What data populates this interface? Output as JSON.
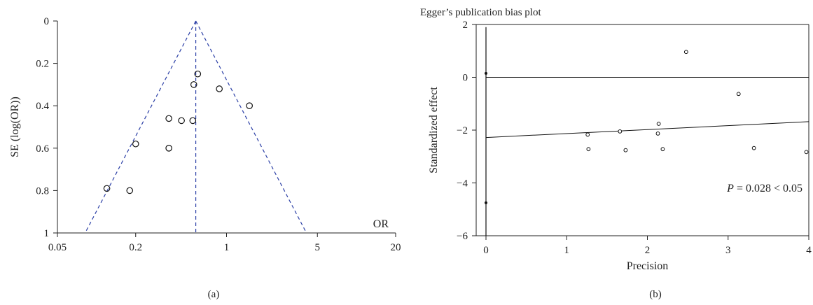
{
  "chart_data": [
    {
      "type": "scatter",
      "subtype": "funnel",
      "caption": "(a)",
      "xlabel": "OR",
      "ylabel": "SE (log(OR))",
      "x_scale": "log",
      "xlim": [
        0.05,
        20
      ],
      "ylim": [
        0,
        1
      ],
      "y_reversed": true,
      "xticks": [
        0.05,
        0.2,
        1,
        5,
        20
      ],
      "xtick_labels": [
        "0.05",
        "0.2",
        "1",
        "5",
        "20"
      ],
      "yticks": [
        0,
        0.2,
        0.4,
        0.6,
        0.8,
        1
      ],
      "ytick_labels": [
        "0",
        "0.2",
        "0.4",
        "0.6",
        "0.8",
        "1"
      ],
      "pooled_or": 0.58,
      "funnel_color": "#2b3fa6",
      "points": [
        {
          "x": 0.6,
          "y": 0.25
        },
        {
          "x": 0.56,
          "y": 0.3
        },
        {
          "x": 0.88,
          "y": 0.32
        },
        {
          "x": 1.5,
          "y": 0.4
        },
        {
          "x": 0.36,
          "y": 0.46
        },
        {
          "x": 0.45,
          "y": 0.47
        },
        {
          "x": 0.55,
          "y": 0.47
        },
        {
          "x": 0.2,
          "y": 0.58
        },
        {
          "x": 0.36,
          "y": 0.6
        },
        {
          "x": 0.12,
          "y": 0.79
        },
        {
          "x": 0.18,
          "y": 0.8
        }
      ]
    },
    {
      "type": "scatter",
      "title": "Egger’s publication bias plot",
      "caption": "(b)",
      "xlabel": "Precision",
      "ylabel": "Standardized effect",
      "xlim": [
        0,
        4
      ],
      "ylim": [
        -6,
        2
      ],
      "xticks": [
        0,
        1,
        2,
        3,
        4
      ],
      "xtick_labels": [
        "0",
        "1",
        "2",
        "3",
        "4"
      ],
      "yticks": [
        -6,
        -4,
        -2,
        0,
        2
      ],
      "ytick_labels": [
        "−6",
        "−4",
        "−2",
        "0",
        "2"
      ],
      "reference_line_y": 0,
      "regression_line": {
        "x0": 0,
        "y0": -2.28,
        "x1": 4,
        "y1": -1.68
      },
      "intercept_ci": {
        "x": 0,
        "y0": -6,
        "y1": 1.9
      },
      "intercept_points": [
        {
          "x": 0,
          "y": 0.15
        },
        {
          "x": 0,
          "y": -4.75
        }
      ],
      "annotation": {
        "italic": "P",
        "text": " = 0.028 < 0.05"
      },
      "points": [
        {
          "x": 1.26,
          "y": -2.17
        },
        {
          "x": 1.27,
          "y": -2.72
        },
        {
          "x": 1.66,
          "y": -2.05
        },
        {
          "x": 1.73,
          "y": -2.76
        },
        {
          "x": 2.14,
          "y": -1.76
        },
        {
          "x": 2.13,
          "y": -2.13
        },
        {
          "x": 2.19,
          "y": -2.72
        },
        {
          "x": 2.48,
          "y": 0.96
        },
        {
          "x": 3.13,
          "y": -0.63
        },
        {
          "x": 3.32,
          "y": -2.68
        },
        {
          "x": 3.97,
          "y": -2.83
        }
      ]
    }
  ]
}
